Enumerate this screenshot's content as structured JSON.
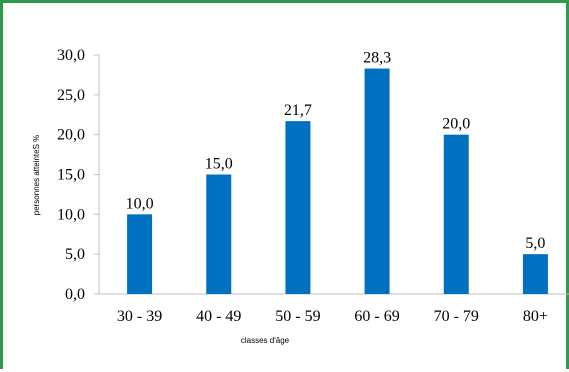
{
  "chart_data": {
    "type": "bar",
    "categories": [
      "30 - 39",
      "40 - 49",
      "50 - 59",
      "60 - 69",
      "70 - 79",
      "80+"
    ],
    "values": [
      10.0,
      15.0,
      21.7,
      28.3,
      20.0,
      5.0
    ],
    "data_labels": [
      "10,0",
      "15,0",
      "21,7",
      "28,3",
      "20,0",
      "5,0"
    ],
    "y_ticks": [
      "0,0",
      "5,0",
      "10,0",
      "15,0",
      "20,0",
      "25,0",
      "30,0"
    ],
    "ylim": [
      0,
      30
    ],
    "xlabel": "classes d'âge",
    "ylabel": "personnes atteinteS  %",
    "title": "",
    "grid": false,
    "bar_color": "#0070c0",
    "frame_color": "#2e9b4a"
  }
}
